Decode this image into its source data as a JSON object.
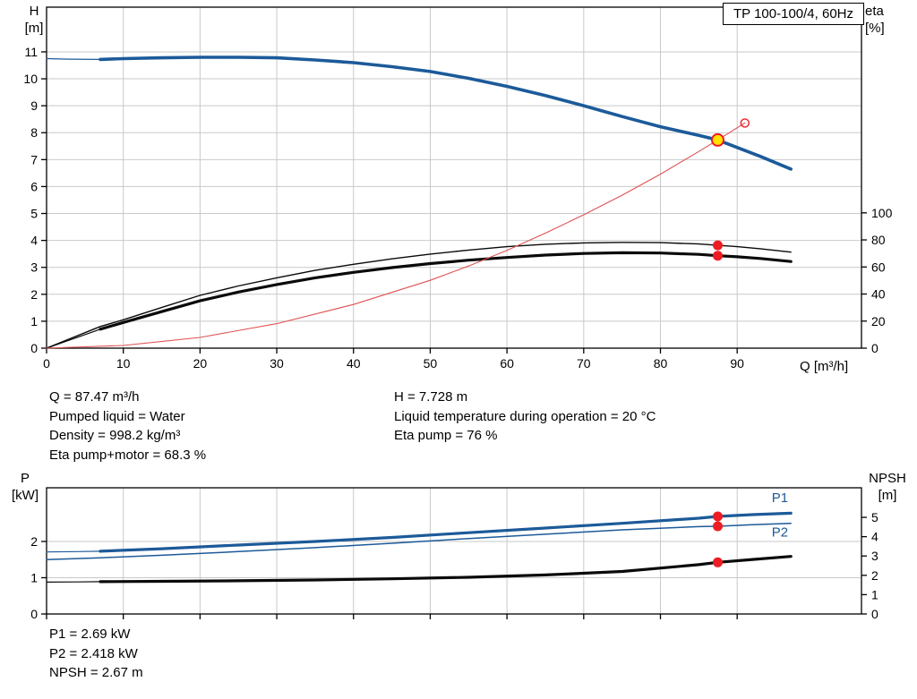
{
  "title": "TP 100-100/4, 60Hz",
  "colors": {
    "curve_blue": "#1c5a99",
    "curve_black": "#0a0a0a",
    "curve_red": "#e05252",
    "marker_red": "#ee1c23",
    "marker_yellow": "#ffe100",
    "grid": "#c9c9c9",
    "axis": "#000000"
  },
  "axis_labels": {
    "h_top": "H",
    "h_unit": "[m]",
    "eta_top": "eta",
    "eta_unit": "[%]",
    "q": "Q [m³/h]",
    "p_top": "P",
    "p_unit": "[kW]",
    "npsh_top": "NPSH",
    "npsh_unit": "[m]"
  },
  "annotations": {
    "left": [
      "Q = 87.47 m³/h",
      "Pumped liquid = Water",
      "Density = 998.2 kg/m³",
      "Eta pump+motor = 68.3 %"
    ],
    "right": [
      "H = 7.728 m",
      "Liquid temperature during operation = 20 °C",
      "Eta pump = 76 %"
    ],
    "bottom": [
      "P1 = 2.69 kW",
      "P2 = 2.418 kW",
      "NPSH = 2.67 m"
    ]
  },
  "chart_data": [
    {
      "id": "top",
      "type": "line",
      "title": "TP 100-100/4, 60Hz",
      "x_axis": {
        "label": "Q [m³/h]",
        "min": 0,
        "max": 106.2,
        "ticks": [
          0,
          10,
          20,
          30,
          40,
          50,
          60,
          70,
          80,
          90
        ],
        "show_tick_labels": true
      },
      "y_left": {
        "label": "H [m]",
        "min": 0,
        "max": 12.66,
        "ticks": [
          0,
          1,
          2,
          3,
          4,
          5,
          6,
          7,
          8,
          9,
          10,
          11
        ]
      },
      "y_right": {
        "label": "eta [%]",
        "min": 0,
        "max": 252,
        "ticks": [
          0,
          20,
          40,
          60,
          80,
          100
        ]
      },
      "grid": true,
      "series": [
        {
          "name": "pump-curve-lead",
          "axis": "left",
          "color": "#1c5a99",
          "width": 1.2,
          "points": [
            [
              0,
              10.75
            ],
            [
              3,
              10.73
            ],
            [
              7,
              10.72
            ]
          ]
        },
        {
          "name": "pump-curve",
          "axis": "left",
          "color": "#1c5a99",
          "width": 3.6,
          "points": [
            [
              7,
              10.72
            ],
            [
              10,
              10.75
            ],
            [
              15,
              10.78
            ],
            [
              20,
              10.8
            ],
            [
              25,
              10.8
            ],
            [
              30,
              10.78
            ],
            [
              35,
              10.7
            ],
            [
              40,
              10.6
            ],
            [
              45,
              10.45
            ],
            [
              50,
              10.27
            ],
            [
              55,
              10.02
            ],
            [
              60,
              9.72
            ],
            [
              65,
              9.38
            ],
            [
              70,
              9.0
            ],
            [
              75,
              8.6
            ],
            [
              80,
              8.22
            ],
            [
              85,
              7.9
            ],
            [
              87.47,
              7.73
            ],
            [
              90,
              7.45
            ],
            [
              93,
              7.12
            ],
            [
              97,
              6.65
            ]
          ]
        },
        {
          "name": "eta-pump-curve",
          "axis": "right",
          "color": "#0a0a0a",
          "width": 1.4,
          "points": [
            [
              0,
              0
            ],
            [
              7,
              16
            ],
            [
              10,
              21
            ],
            [
              15,
              30
            ],
            [
              20,
              39
            ],
            [
              25,
              46
            ],
            [
              30,
              52
            ],
            [
              35,
              57.5
            ],
            [
              40,
              62
            ],
            [
              45,
              66
            ],
            [
              50,
              69.5
            ],
            [
              55,
              72.5
            ],
            [
              60,
              75
            ],
            [
              65,
              76.8
            ],
            [
              70,
              77.8
            ],
            [
              75,
              78.2
            ],
            [
              80,
              78
            ],
            [
              85,
              77
            ],
            [
              87.47,
              76
            ],
            [
              90,
              75
            ],
            [
              93,
              73.5
            ],
            [
              97,
              71
            ]
          ]
        },
        {
          "name": "eta-pump-motor-curve-lead",
          "axis": "right",
          "color": "#0a0a0a",
          "width": 1.2,
          "points": [
            [
              0,
              0
            ],
            [
              4,
              8
            ],
            [
              7,
              14
            ]
          ]
        },
        {
          "name": "eta-pump-motor-curve",
          "axis": "right",
          "color": "#0a0a0a",
          "width": 3.2,
          "points": [
            [
              7,
              14
            ],
            [
              10,
              19
            ],
            [
              15,
              27
            ],
            [
              20,
              35
            ],
            [
              25,
              41.5
            ],
            [
              30,
              47
            ],
            [
              35,
              52
            ],
            [
              40,
              56
            ],
            [
              45,
              59.5
            ],
            [
              50,
              62.5
            ],
            [
              55,
              65
            ],
            [
              60,
              67
            ],
            [
              65,
              68.8
            ],
            [
              70,
              70
            ],
            [
              75,
              70.5
            ],
            [
              80,
              70.3
            ],
            [
              85,
              69.3
            ],
            [
              87.47,
              68.3
            ],
            [
              90,
              67.5
            ],
            [
              93,
              66.3
            ],
            [
              97,
              64
            ]
          ]
        },
        {
          "name": "system-curve",
          "axis": "left",
          "color": "#e05252",
          "width": 1.1,
          "points": [
            [
              0,
              0
            ],
            [
              10,
              0.1
            ],
            [
              20,
              0.4
            ],
            [
              30,
              0.91
            ],
            [
              40,
              1.62
            ],
            [
              50,
              2.52
            ],
            [
              55,
              3.05
            ],
            [
              60,
              3.63
            ],
            [
              65,
              4.27
            ],
            [
              70,
              4.95
            ],
            [
              75,
              5.68
            ],
            [
              80,
              6.46
            ],
            [
              85,
              7.3
            ],
            [
              87.47,
              7.728
            ],
            [
              89,
              8.0
            ],
            [
              91,
              8.36
            ]
          ]
        }
      ],
      "markers": [
        {
          "name": "system-curve-end-marker",
          "axis": "left",
          "q": 91,
          "v": 8.36,
          "r": 4.5,
          "fill": "none",
          "stroke": "#ee1c23",
          "sw": 1.4
        },
        {
          "name": "eta-pump-duty-marker",
          "axis": "right",
          "q": 87.47,
          "v": 76,
          "r": 5.5,
          "fill": "#ee1c23"
        },
        {
          "name": "eta-pump-motor-duty-marker",
          "axis": "right",
          "q": 87.47,
          "v": 68.3,
          "r": 5.5,
          "fill": "#ee1c23"
        },
        {
          "name": "duty-point-marker",
          "axis": "left",
          "q": 87.47,
          "v": 7.728,
          "r": 6.5,
          "fill": "#ffe100",
          "stroke": "#ee1c23",
          "sw": 2
        }
      ],
      "labels": []
    },
    {
      "id": "bottom",
      "type": "line",
      "title": "",
      "x_axis": {
        "label": "",
        "min": 0,
        "max": 106.2,
        "ticks": [
          0,
          10,
          20,
          30,
          40,
          50,
          60,
          70,
          80,
          90
        ],
        "show_tick_labels": false
      },
      "y_left": {
        "label": "P [kW]",
        "min": 0,
        "max": 3.48,
        "ticks": [
          0,
          1,
          2
        ]
      },
      "y_right": {
        "label": "NPSH [m]",
        "min": 0,
        "max": 6.53,
        "ticks": [
          0,
          1,
          2,
          3,
          4,
          5
        ]
      },
      "grid": true,
      "series": [
        {
          "name": "p1-curve-lead",
          "axis": "left",
          "color": "#1c5a99",
          "width": 1.2,
          "points": [
            [
              0,
              1.71
            ],
            [
              4,
              1.72
            ],
            [
              7,
              1.73
            ]
          ]
        },
        {
          "name": "p1-curve",
          "axis": "left",
          "color": "#1c5a99",
          "width": 3.2,
          "points": [
            [
              7,
              1.73
            ],
            [
              15,
              1.8
            ],
            [
              25,
              1.9
            ],
            [
              35,
              2.0
            ],
            [
              45,
              2.11
            ],
            [
              55,
              2.24
            ],
            [
              65,
              2.37
            ],
            [
              75,
              2.5
            ],
            [
              85,
              2.64
            ],
            [
              87.47,
              2.69
            ],
            [
              92,
              2.74
            ],
            [
              97,
              2.78
            ]
          ]
        },
        {
          "name": "p2-curve",
          "axis": "left",
          "color": "#1c5a99",
          "width": 1.5,
          "points": [
            [
              0,
              1.5
            ],
            [
              7,
              1.55
            ],
            [
              15,
              1.62
            ],
            [
              25,
              1.72
            ],
            [
              35,
              1.83
            ],
            [
              45,
              1.95
            ],
            [
              55,
              2.08
            ],
            [
              65,
              2.2
            ],
            [
              75,
              2.32
            ],
            [
              85,
              2.41
            ],
            [
              87.47,
              2.418
            ],
            [
              92,
              2.46
            ],
            [
              97,
              2.5
            ]
          ]
        },
        {
          "name": "npsh-curve-lead",
          "axis": "right",
          "color": "#0a0a0a",
          "width": 1.2,
          "points": [
            [
              0,
              1.65
            ],
            [
              4,
              1.66
            ],
            [
              7,
              1.67
            ]
          ]
        },
        {
          "name": "npsh-curve",
          "axis": "right",
          "color": "#0a0a0a",
          "width": 3.2,
          "points": [
            [
              7,
              1.67
            ],
            [
              15,
              1.69
            ],
            [
              25,
              1.72
            ],
            [
              35,
              1.76
            ],
            [
              45,
              1.82
            ],
            [
              55,
              1.9
            ],
            [
              65,
              2.02
            ],
            [
              75,
              2.2
            ],
            [
              85,
              2.55
            ],
            [
              87.47,
              2.67
            ],
            [
              92,
              2.82
            ],
            [
              97,
              2.98
            ]
          ]
        }
      ],
      "markers": [
        {
          "name": "p1-duty-marker",
          "axis": "left",
          "q": 87.47,
          "v": 2.69,
          "r": 5.5,
          "fill": "#ee1c23"
        },
        {
          "name": "p2-duty-marker",
          "axis": "left",
          "q": 87.47,
          "v": 2.418,
          "r": 5.5,
          "fill": "#ee1c23"
        },
        {
          "name": "npsh-duty-marker",
          "axis": "right",
          "q": 87.47,
          "v": 2.67,
          "r": 5.5,
          "fill": "#ee1c23"
        }
      ],
      "labels": [
        {
          "name": "p1-curve-label",
          "text": "P1",
          "axis": "left",
          "q": 94.5,
          "v": 3.08,
          "color": "#1c5a99"
        },
        {
          "name": "p2-curve-label",
          "text": "P2",
          "axis": "left",
          "q": 94.5,
          "v": 2.13,
          "color": "#1c5a99"
        }
      ]
    }
  ]
}
